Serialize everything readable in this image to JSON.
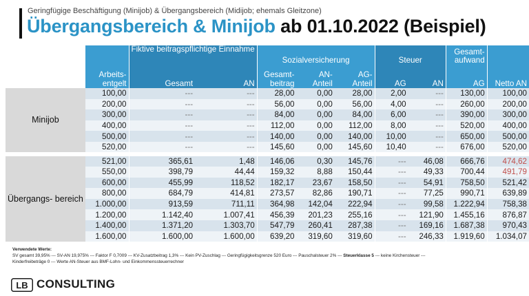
{
  "header": {
    "subtitle": "Geringfügige Beschäftigung (Minijob) & Übergangsbereich (Midijob; ehemals Gleitzone)",
    "title_blue": "Übergangsbereich & Minijob",
    "title_black": "ab 01.10.2022 (Beispiel)"
  },
  "table": {
    "group_headers": {
      "fiktive": "Fiktive beitragspflichtige Einnahme",
      "sozial": "Sozialversicherung",
      "steuer": "Steuer",
      "gesamtaufwand": "Gesamt- aufwand"
    },
    "columns": {
      "arbeitsentgelt": "Arbeits- entgelt",
      "gesamt": "Gesamt",
      "an": "AN",
      "gesamtbeitrag": "Gesamt- beitrag",
      "an_anteil": "AN- Anteil",
      "ag_anteil": "AG- Anteil",
      "steuer_ag": "AG",
      "steuer_an": "AN",
      "gesamtaufwand_ag": "AG",
      "netto_an": "Netto AN"
    },
    "groups": [
      {
        "label": "Minijob",
        "rows": [
          [
            "100,00",
            "---",
            "---",
            "28,00",
            "0,00",
            "28,00",
            "2,00",
            "---",
            "130,00",
            "100,00"
          ],
          [
            "200,00",
            "---",
            "---",
            "56,00",
            "0,00",
            "56,00",
            "4,00",
            "---",
            "260,00",
            "200,00"
          ],
          [
            "300,00",
            "---",
            "---",
            "84,00",
            "0,00",
            "84,00",
            "6,00",
            "---",
            "390,00",
            "300,00"
          ],
          [
            "400,00",
            "---",
            "---",
            "112,00",
            "0,00",
            "112,00",
            "8,00",
            "---",
            "520,00",
            "400,00"
          ],
          [
            "500,00",
            "---",
            "---",
            "140,00",
            "0,00",
            "140,00",
            "10,00",
            "---",
            "650,00",
            "500,00"
          ],
          [
            "520,00",
            "---",
            "---",
            "145,60",
            "0,00",
            "145,60",
            "10,40",
            "---",
            "676,00",
            "520,00"
          ]
        ]
      },
      {
        "label": "Übergangs- bereich",
        "rows": [
          [
            "521,00",
            "365,61",
            "1,48",
            "146,06",
            "0,30",
            "145,76",
            "---",
            "46,08",
            "666,76",
            "474,62"
          ],
          [
            "550,00",
            "398,79",
            "44,44",
            "159,32",
            "8,88",
            "150,44",
            "---",
            "49,33",
            "700,44",
            "491,79"
          ],
          [
            "600,00",
            "455,99",
            "118,52",
            "182,17",
            "23,67",
            "158,50",
            "---",
            "54,91",
            "758,50",
            "521,42"
          ],
          [
            "800,00",
            "684,79",
            "414,81",
            "273,57",
            "82,86",
            "190,71",
            "---",
            "77,25",
            "990,71",
            "639,89"
          ],
          [
            "1.000,00",
            "913,59",
            "711,11",
            "364,98",
            "142,04",
            "222,94",
            "---",
            "99,58",
            "1.222,94",
            "758,38"
          ],
          [
            "1.200,00",
            "1.142,40",
            "1.007,41",
            "456,39",
            "201,23",
            "255,16",
            "---",
            "121,90",
            "1.455,16",
            "876,87"
          ],
          [
            "1.400,00",
            "1.371,20",
            "1.303,70",
            "547,79",
            "260,41",
            "287,38",
            "---",
            "169,16",
            "1.687,38",
            "970,43"
          ],
          [
            "1.600,00",
            "1.600,00",
            "1.600,00",
            "639,20",
            "319,60",
            "319,60",
            "---",
            "246,33",
            "1.919,60",
            "1.034,07"
          ]
        ]
      }
    ],
    "highlight_color": "#c0504d",
    "header_color": "#3b9dd1"
  },
  "notes": {
    "heading": "Verwendete Werte:",
    "line1_a": "SV gesamt 39,95% --- SV-AN 19,975% --- Faktor F 0,7009 --- KV-Zusatzbeitrag 1,3% --- Kein PV-Zuschlag --- Geringfügigkeitsgrenze 520 Euro --- Pauschalsteuer 2% --- ",
    "line1_b": "Steuerklasse 5",
    "line1_c": " --- keine Kirchensteuer ---",
    "line2": "Kinderfreibeträge 0 --- Werte AN-Steuer aus BMF-Lohn- und Einkommenssteuerrechner"
  },
  "logo": {
    "mark": "LB",
    "text": "CONSULTING"
  }
}
